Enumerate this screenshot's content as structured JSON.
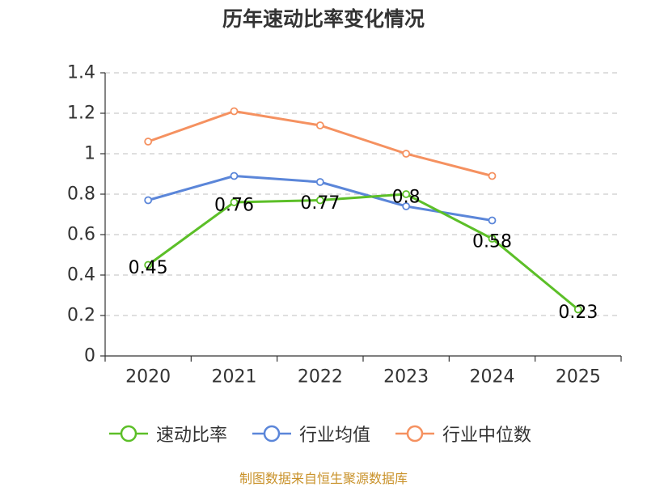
{
  "chart_data": {
    "type": "line",
    "title": "历年速动比率变化情况",
    "categories": [
      "2020",
      "2021",
      "2022",
      "2023",
      "2024",
      "2025"
    ],
    "ylim": [
      0,
      1.4
    ],
    "yticks": [
      "0",
      "0.2",
      "0.4",
      "0.6",
      "0.8",
      "1",
      "1.2",
      "1.4"
    ],
    "ytick_values": [
      0,
      0.2,
      0.4,
      0.6,
      0.8,
      1.0,
      1.2,
      1.4
    ],
    "grid": true,
    "legend_position": "bottom",
    "series": [
      {
        "name": "速动比率",
        "color": "#5cbf28",
        "values": [
          0.45,
          0.76,
          0.77,
          0.8,
          0.58,
          0.23
        ],
        "labels": [
          "0.45",
          "0.76",
          "0.77",
          "0.8",
          "0.58",
          "0.23"
        ],
        "show_labels": true
      },
      {
        "name": "行业均值",
        "color": "#5b86d9",
        "values": [
          0.77,
          0.89,
          0.86,
          0.74,
          0.67,
          null
        ],
        "show_labels": false
      },
      {
        "name": "行业中位数",
        "color": "#f59160",
        "values": [
          1.06,
          1.21,
          1.14,
          1.0,
          0.89,
          null
        ],
        "show_labels": false
      }
    ]
  },
  "footer": {
    "source": "制图数据来自恒生聚源数据库"
  }
}
